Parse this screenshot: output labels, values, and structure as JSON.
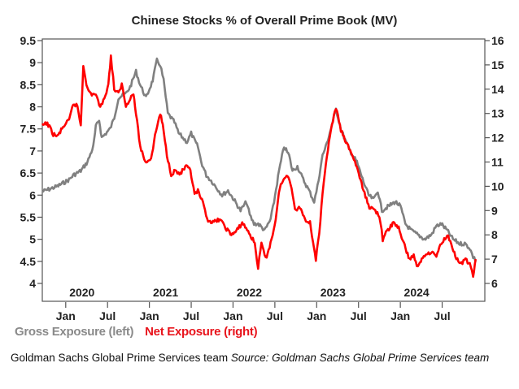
{
  "chart_data": {
    "type": "line",
    "title": "Chinese Stocks % of Overall Prime Book (MV)",
    "xlabel": "",
    "ylabel_left": "",
    "ylabel_right": "",
    "x_range": [
      2019.72,
      2025.01
    ],
    "y_left": {
      "range": [
        4.0,
        9.5
      ],
      "ticks": [
        9.5,
        9,
        8.5,
        8,
        7.5,
        7,
        6.5,
        6,
        5.5,
        5,
        4.5,
        4
      ],
      "tick_labels": [
        "9.5",
        "9",
        "8.5",
        "8",
        "7.5",
        "7",
        "6.5",
        "6",
        "5.5",
        "5",
        "4.5",
        "4"
      ]
    },
    "y_right": {
      "range": [
        6,
        16
      ],
      "ticks": [
        16,
        15,
        14,
        13,
        12,
        11,
        10,
        9,
        8,
        7,
        6
      ],
      "tick_labels": [
        "16",
        "15",
        "14",
        "13",
        "12",
        "11",
        "10",
        "9",
        "8",
        "7",
        "6"
      ]
    },
    "x_ticks": [
      {
        "x": 2020.0,
        "label": "Jan"
      },
      {
        "x": 2020.5,
        "label": "Jul"
      },
      {
        "x": 2021.0,
        "label": "Jan"
      },
      {
        "x": 2021.5,
        "label": "Jul"
      },
      {
        "x": 2022.0,
        "label": "Jan"
      },
      {
        "x": 2022.5,
        "label": "Jul"
      },
      {
        "x": 2023.0,
        "label": "Jan"
      },
      {
        "x": 2023.5,
        "label": "Jul"
      },
      {
        "x": 2024.0,
        "label": "Jan"
      },
      {
        "x": 2024.5,
        "label": "Jul"
      }
    ],
    "year_labels": [
      {
        "x": 2020.0,
        "label": "2020"
      },
      {
        "x": 2021.0,
        "label": "2021"
      },
      {
        "x": 2022.0,
        "label": "2022"
      },
      {
        "x": 2023.0,
        "label": "2023"
      },
      {
        "x": 2024.0,
        "label": "2024"
      }
    ],
    "grid": false,
    "legend_position": "bottom-left",
    "series": [
      {
        "name": "Gross Exposure (left)",
        "axis": "left",
        "color": "#808080",
        "x": [
          2019.72,
          2019.9,
          2020.04,
          2020.09,
          2020.18,
          2020.26,
          2020.33,
          2020.36,
          2020.4,
          2020.43,
          2020.48,
          2020.53,
          2020.58,
          2020.63,
          2020.67,
          2020.72,
          2020.77,
          2020.84,
          2020.89,
          2020.96,
          2021.04,
          2021.09,
          2021.13,
          2021.17,
          2021.22,
          2021.3,
          2021.35,
          2021.4,
          2021.45,
          2021.5,
          2021.55,
          2021.58,
          2021.62,
          2021.68,
          2021.75,
          2021.87,
          2021.94,
          2022.01,
          2022.09,
          2022.16,
          2022.2,
          2022.25,
          2022.3,
          2022.38,
          2022.45,
          2022.49,
          2022.55,
          2022.61,
          2022.67,
          2022.71,
          2022.77,
          2022.84,
          2022.91,
          2022.97,
          2023.01,
          2023.07,
          2023.11,
          2023.17,
          2023.23,
          2023.29,
          2023.35,
          2023.4,
          2023.48,
          2023.56,
          2023.62,
          2023.68,
          2023.73,
          2023.78,
          2023.86,
          2023.94,
          2024.0,
          2024.06,
          2024.13,
          2024.21,
          2024.29,
          2024.37,
          2024.43,
          2024.49,
          2024.56,
          2024.63,
          2024.71,
          2024.77,
          2024.83,
          2024.87,
          2024.91
        ],
        "values": [
          6.08,
          6.2,
          6.35,
          6.45,
          6.55,
          6.75,
          7.1,
          7.55,
          7.7,
          7.3,
          7.4,
          7.5,
          7.75,
          8.2,
          8.25,
          8.3,
          8.45,
          8.8,
          8.5,
          8.2,
          8.6,
          9.05,
          8.95,
          8.6,
          7.85,
          7.65,
          7.4,
          7.3,
          7.2,
          7.4,
          7.2,
          7.1,
          6.75,
          6.45,
          6.3,
          6.0,
          6.1,
          5.9,
          5.65,
          5.85,
          5.55,
          5.35,
          5.35,
          5.2,
          5.45,
          5.85,
          6.55,
          7.1,
          6.9,
          6.55,
          6.65,
          6.35,
          6.1,
          5.85,
          6.2,
          6.9,
          7.1,
          7.5,
          7.95,
          7.5,
          7.2,
          7.0,
          6.75,
          6.3,
          6.0,
          5.9,
          6.1,
          5.65,
          5.75,
          5.85,
          5.75,
          5.35,
          5.2,
          5.1,
          5.0,
          5.1,
          5.3,
          5.35,
          5.2,
          5.0,
          4.9,
          4.9,
          4.8,
          4.6,
          4.5
        ]
      },
      {
        "name": "Net Exposure (right)",
        "axis": "right",
        "color": "#ff0000",
        "x": [
          2019.72,
          2019.78,
          2019.85,
          2019.9,
          2019.98,
          2020.04,
          2020.09,
          2020.14,
          2020.18,
          2020.21,
          2020.26,
          2020.3,
          2020.36,
          2020.4,
          2020.45,
          2020.51,
          2020.54,
          2020.58,
          2020.63,
          2020.67,
          2020.72,
          2020.77,
          2020.81,
          2020.84,
          2020.89,
          2020.95,
          2021.02,
          2021.08,
          2021.13,
          2021.16,
          2021.21,
          2021.26,
          2021.31,
          2021.36,
          2021.44,
          2021.49,
          2021.54,
          2021.58,
          2021.64,
          2021.69,
          2021.76,
          2021.84,
          2021.91,
          2021.98,
          2022.04,
          2022.11,
          2022.18,
          2022.26,
          2022.3,
          2022.34,
          2022.39,
          2022.46,
          2022.51,
          2022.56,
          2022.65,
          2022.7,
          2022.74,
          2022.8,
          2022.86,
          2022.92,
          2022.99,
          2023.03,
          2023.07,
          2023.11,
          2023.17,
          2023.23,
          2023.29,
          2023.35,
          2023.4,
          2023.48,
          2023.56,
          2023.63,
          2023.7,
          2023.75,
          2023.79,
          2023.84,
          2023.92,
          2023.98,
          2024.04,
          2024.11,
          2024.16,
          2024.21,
          2024.28,
          2024.36,
          2024.43,
          2024.49,
          2024.56,
          2024.61,
          2024.67,
          2024.73,
          2024.78,
          2024.83,
          2024.87,
          2024.9
        ],
        "values": [
          12.5,
          12.6,
          12.15,
          12.05,
          12.5,
          12.7,
          13.4,
          13.3,
          12.5,
          15.0,
          14.0,
          13.8,
          13.8,
          13.3,
          13.5,
          14.2,
          15.35,
          14.0,
          13.8,
          14.2,
          13.3,
          13.65,
          13.8,
          13.0,
          11.65,
          11.0,
          11.15,
          12.3,
          13.0,
          12.5,
          11.3,
          10.5,
          10.65,
          10.5,
          10.8,
          10.65,
          9.65,
          9.8,
          9.3,
          8.65,
          8.5,
          8.65,
          8.3,
          8.0,
          8.15,
          8.5,
          8.15,
          7.65,
          6.65,
          7.65,
          7.0,
          7.8,
          8.65,
          10.0,
          10.5,
          10.0,
          9.0,
          9.15,
          8.65,
          8.5,
          7.0,
          8.0,
          9.65,
          11.0,
          12.3,
          13.25,
          12.3,
          11.8,
          11.5,
          10.8,
          9.8,
          9.15,
          9.0,
          8.8,
          7.8,
          8.15,
          8.5,
          8.3,
          7.65,
          7.0,
          7.15,
          6.65,
          7.15,
          7.3,
          7.15,
          7.65,
          8.0,
          7.65,
          7.0,
          6.8,
          7.0,
          6.8,
          6.3,
          7.0
        ]
      }
    ]
  },
  "legend": {
    "gross_label": "Gross Exposure (left)",
    "net_label": "Net Exposure (right)"
  },
  "caption": {
    "text": "Goldman Sachs Global Prime Services team ",
    "source_italic": "Source: Goldman Sachs Global Prime Services team"
  }
}
